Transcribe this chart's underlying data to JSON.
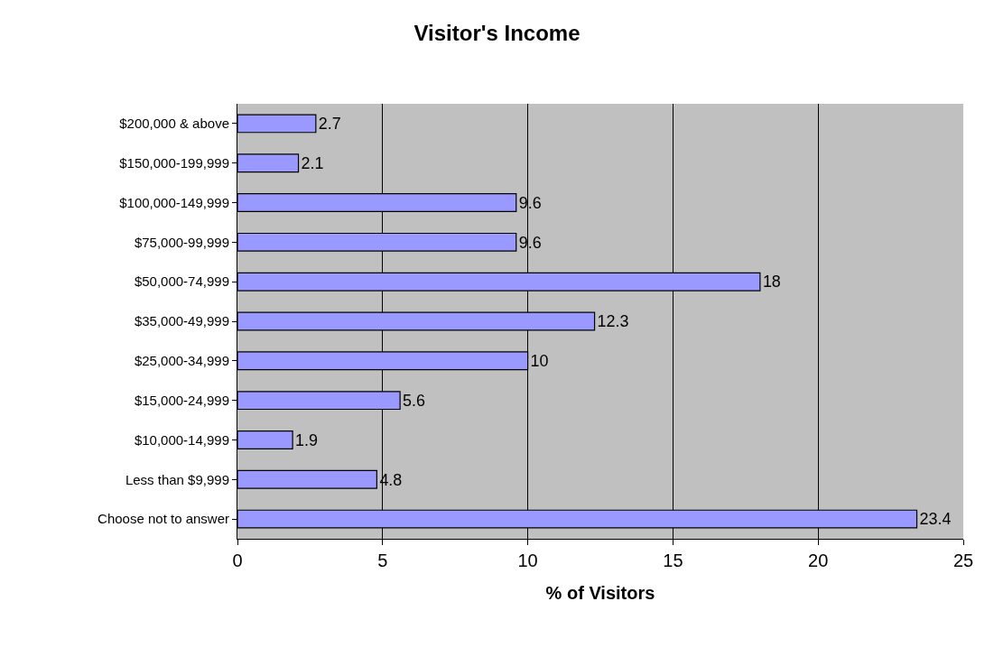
{
  "chart_data": {
    "type": "bar",
    "orientation": "horizontal",
    "title": "Visitor's Income",
    "xlabel": "% of Visitors",
    "categories": [
      "$200,000 & above",
      "$150,000-199,999",
      "$100,000-149,999",
      "$75,000-99,999",
      "$50,000-74,999",
      "$35,000-49,999",
      "$25,000-34,999",
      "$15,000-24,999",
      "$10,000-14,999",
      "Less than $9,999",
      "Choose not to answer"
    ],
    "values": [
      2.7,
      2.1,
      9.6,
      9.6,
      18,
      12.3,
      10,
      5.6,
      1.9,
      4.8,
      23.4
    ],
    "color": "#9999ff",
    "xlim": [
      0,
      25
    ],
    "xticks": [
      0,
      5,
      10,
      15,
      20,
      25
    ],
    "grid": "x",
    "legend": false,
    "data_labels": true
  }
}
